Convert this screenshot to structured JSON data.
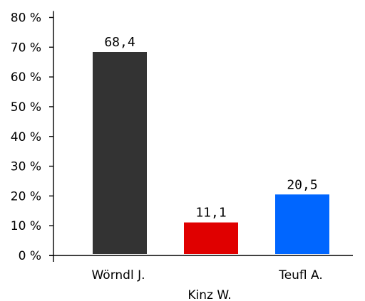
{
  "chart_data": {
    "type": "bar",
    "title": "",
    "xlabel": "",
    "ylabel": "",
    "categories": [
      "Wörndl J.",
      "Kinz W.",
      "Teufl A."
    ],
    "values": [
      68.4,
      11.1,
      20.5
    ],
    "value_labels": [
      "68,4",
      "11,1",
      "20,5"
    ],
    "colors": [
      "#333333",
      "#e00000",
      "#0066ff"
    ],
    "ylim": [
      0,
      80
    ],
    "yticks": [
      0,
      10,
      20,
      30,
      40,
      50,
      60,
      70,
      80
    ],
    "ytick_labels": [
      "0 %",
      "10 %",
      "20 %",
      "30 %",
      "40 %",
      "50 %",
      "60 %",
      "70 %",
      "80 %"
    ],
    "grid": false,
    "legend": "none"
  }
}
